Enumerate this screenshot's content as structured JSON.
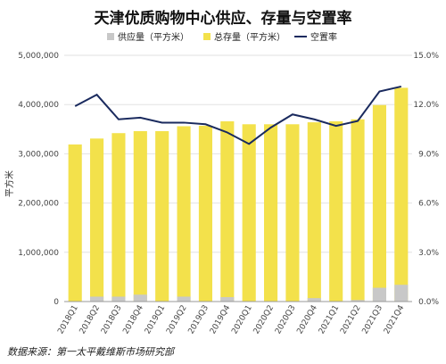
{
  "chart_data": {
    "type": "bar",
    "title": "天津优质购物中心供应、存量与空置率",
    "ylabel": "平方米",
    "ylim": [
      0,
      5000000
    ],
    "y2lim": [
      0,
      15
    ],
    "yticks": [
      "0",
      "1,000,000",
      "2,000,000",
      "3,000,000",
      "4,000,000",
      "5,000,000"
    ],
    "y2ticks": [
      "0.0%",
      "3.0%",
      "6.0%",
      "9.0%",
      "12.0%",
      "15.0%"
    ],
    "categories": [
      "2018Q1",
      "2018Q2",
      "2018Q3",
      "2018Q4",
      "2019Q1",
      "2019Q2",
      "2019Q3",
      "2019Q4",
      "2020Q1",
      "2020Q2",
      "2020Q3",
      "2020Q4",
      "2021Q1",
      "2021Q2",
      "2021Q3",
      "2021Q4"
    ],
    "series": [
      {
        "name": "供应量（平方米）",
        "type": "bar",
        "color": "#c8c8c8",
        "values": [
          0,
          100000,
          100000,
          140000,
          0,
          100000,
          0,
          90000,
          0,
          0,
          0,
          70000,
          0,
          30000,
          280000,
          340000
        ]
      },
      {
        "name": "总存量（平方米）",
        "type": "bar",
        "color": "#f3e14b",
        "values": [
          3190000,
          3310000,
          3420000,
          3460000,
          3460000,
          3560000,
          3570000,
          3660000,
          3600000,
          3600000,
          3600000,
          3640000,
          3660000,
          3700000,
          3990000,
          4340000
        ]
      },
      {
        "name": "空置率",
        "type": "line",
        "color": "#1a2a5e",
        "axis": "right",
        "values": [
          11.9,
          12.6,
          11.1,
          11.2,
          10.9,
          10.9,
          10.8,
          10.3,
          9.6,
          10.6,
          11.4,
          11.1,
          10.7,
          11.0,
          12.8,
          13.1
        ]
      }
    ],
    "legend": "top",
    "grid": true
  },
  "source": "数据来源：第一太平戴维斯市场研究部"
}
